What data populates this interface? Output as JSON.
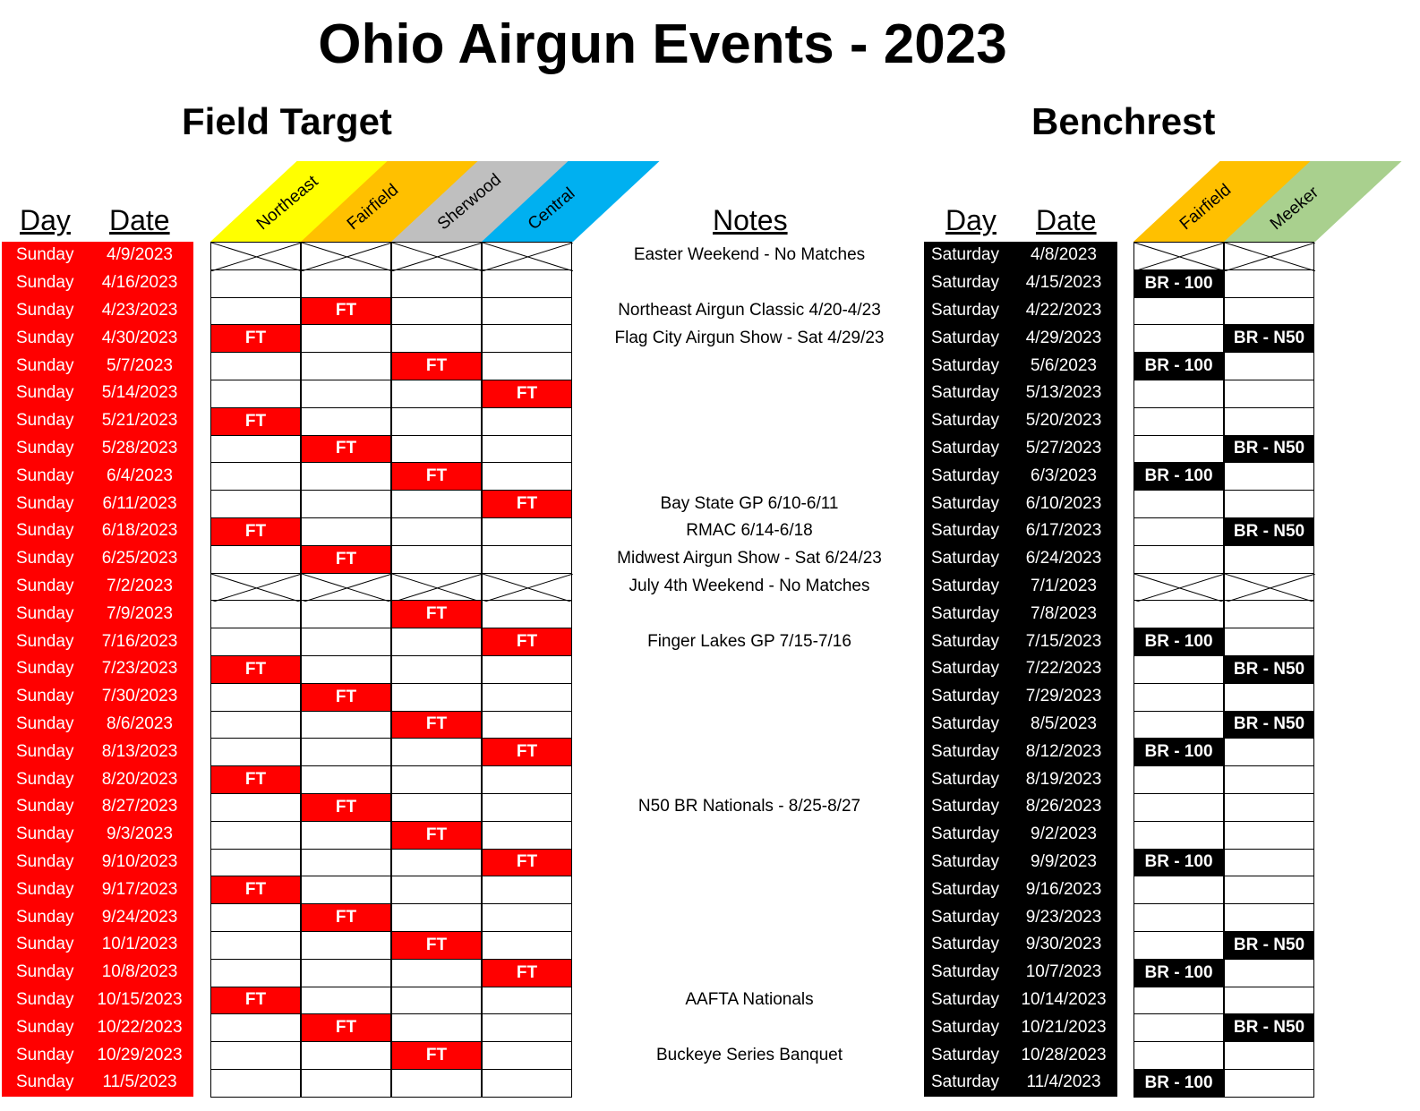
{
  "title": "Ohio Airgun Events - 2023",
  "field_target_title": "Field Target",
  "benchrest_title": "Benchrest",
  "headers": {
    "day": "Day",
    "date": "Date",
    "notes": "Notes"
  },
  "ft_venues": [
    {
      "name": "Northeast",
      "color": "#ffff00"
    },
    {
      "name": "Fairfield",
      "color": "#ffc000"
    },
    {
      "name": "Sherwood",
      "color": "#bfbfbf"
    },
    {
      "name": "Central",
      "color": "#00b0f0"
    }
  ],
  "br_venues": [
    {
      "name": "Fairfield",
      "color": "#ffc000"
    },
    {
      "name": "Meeker",
      "color": "#a9d08e"
    }
  ],
  "colors": {
    "ft_day_bg": "#ff0000",
    "br_day_bg": "#000000"
  },
  "rows": [
    {
      "day": "Sunday",
      "date": "4/9/2023",
      "ft": "X",
      "note": "Easter Weekend - No Matches",
      "bday": "Saturday",
      "bdate": "4/8/2023",
      "br": "X"
    },
    {
      "day": "Sunday",
      "date": "4/16/2023",
      "ft": "",
      "note": "",
      "bday": "Saturday",
      "bdate": "4/15/2023",
      "br": "BR - 100|"
    },
    {
      "day": "Sunday",
      "date": "4/23/2023",
      "ft": "|FT||",
      "note": "Northeast Airgun Classic 4/20-4/23",
      "bday": "Saturday",
      "bdate": "4/22/2023",
      "br": ""
    },
    {
      "day": "Sunday",
      "date": "4/30/2023",
      "ft": "FT|||",
      "note": "Flag City Airgun Show - Sat 4/29/23",
      "bday": "Saturday",
      "bdate": "4/29/2023",
      "br": "|BR - N50"
    },
    {
      "day": "Sunday",
      "date": "5/7/2023",
      "ft": "||FT|",
      "note": "",
      "bday": "Saturday",
      "bdate": "5/6/2023",
      "br": "BR - 100|"
    },
    {
      "day": "Sunday",
      "date": "5/14/2023",
      "ft": "|||FT",
      "note": "",
      "bday": "Saturday",
      "bdate": "5/13/2023",
      "br": ""
    },
    {
      "day": "Sunday",
      "date": "5/21/2023",
      "ft": "FT|||",
      "note": "",
      "bday": "Saturday",
      "bdate": "5/20/2023",
      "br": ""
    },
    {
      "day": "Sunday",
      "date": "5/28/2023",
      "ft": "|FT||",
      "note": "",
      "bday": "Saturday",
      "bdate": "5/27/2023",
      "br": "|BR - N50"
    },
    {
      "day": "Sunday",
      "date": "6/4/2023",
      "ft": "||FT|",
      "note": "",
      "bday": "Saturday",
      "bdate": "6/3/2023",
      "br": "BR - 100|"
    },
    {
      "day": "Sunday",
      "date": "6/11/2023",
      "ft": "|||FT",
      "note": "Bay State GP 6/10-6/11",
      "bday": "Saturday",
      "bdate": "6/10/2023",
      "br": ""
    },
    {
      "day": "Sunday",
      "date": "6/18/2023",
      "ft": "FT|||",
      "note": "RMAC 6/14-6/18",
      "bday": "Saturday",
      "bdate": "6/17/2023",
      "br": "|BR - N50"
    },
    {
      "day": "Sunday",
      "date": "6/25/2023",
      "ft": "|FT||",
      "note": "Midwest Airgun Show - Sat 6/24/23",
      "bday": "Saturday",
      "bdate": "6/24/2023",
      "br": ""
    },
    {
      "day": "Sunday",
      "date": "7/2/2023",
      "ft": "X",
      "note": "July 4th Weekend  - No Matches",
      "bday": "Saturday",
      "bdate": "7/1/2023",
      "br": "X"
    },
    {
      "day": "Sunday",
      "date": "7/9/2023",
      "ft": "||FT|",
      "note": "",
      "bday": "Saturday",
      "bdate": "7/8/2023",
      "br": ""
    },
    {
      "day": "Sunday",
      "date": "7/16/2023",
      "ft": "|||FT",
      "note": "Finger Lakes GP 7/15-7/16",
      "bday": "Saturday",
      "bdate": "7/15/2023",
      "br": "BR - 100|"
    },
    {
      "day": "Sunday",
      "date": "7/23/2023",
      "ft": "FT|||",
      "note": "",
      "bday": "Saturday",
      "bdate": "7/22/2023",
      "br": "|BR - N50"
    },
    {
      "day": "Sunday",
      "date": "7/30/2023",
      "ft": "|FT||",
      "note": "",
      "bday": "Saturday",
      "bdate": "7/29/2023",
      "br": ""
    },
    {
      "day": "Sunday",
      "date": "8/6/2023",
      "ft": "||FT|",
      "note": "",
      "bday": "Saturday",
      "bdate": "8/5/2023",
      "br": "|BR - N50"
    },
    {
      "day": "Sunday",
      "date": "8/13/2023",
      "ft": "|||FT",
      "note": "",
      "bday": "Saturday",
      "bdate": "8/12/2023",
      "br": "BR - 100|"
    },
    {
      "day": "Sunday",
      "date": "8/20/2023",
      "ft": "FT|||",
      "note": "",
      "bday": "Saturday",
      "bdate": "8/19/2023",
      "br": ""
    },
    {
      "day": "Sunday",
      "date": "8/27/2023",
      "ft": "|FT||",
      "note": "N50 BR Nationals - 8/25-8/27",
      "bday": "Saturday",
      "bdate": "8/26/2023",
      "br": ""
    },
    {
      "day": "Sunday",
      "date": "9/3/2023",
      "ft": "||FT|",
      "note": "",
      "bday": "Saturday",
      "bdate": "9/2/2023",
      "br": ""
    },
    {
      "day": "Sunday",
      "date": "9/10/2023",
      "ft": "|||FT",
      "note": "",
      "bday": "Saturday",
      "bdate": "9/9/2023",
      "br": "BR - 100|"
    },
    {
      "day": "Sunday",
      "date": "9/17/2023",
      "ft": "FT|||",
      "note": "",
      "bday": "Saturday",
      "bdate": "9/16/2023",
      "br": ""
    },
    {
      "day": "Sunday",
      "date": "9/24/2023",
      "ft": "|FT||",
      "note": "",
      "bday": "Saturday",
      "bdate": "9/23/2023",
      "br": ""
    },
    {
      "day": "Sunday",
      "date": "10/1/2023",
      "ft": "||FT|",
      "note": "",
      "bday": "Saturday",
      "bdate": "9/30/2023",
      "br": "|BR - N50"
    },
    {
      "day": "Sunday",
      "date": "10/8/2023",
      "ft": "|||FT",
      "note": "",
      "bday": "Saturday",
      "bdate": "10/7/2023",
      "br": "BR - 100|"
    },
    {
      "day": "Sunday",
      "date": "10/15/2023",
      "ft": "FT|||",
      "note": "AAFTA Nationals",
      "bday": "Saturday",
      "bdate": "10/14/2023",
      "br": ""
    },
    {
      "day": "Sunday",
      "date": "10/22/2023",
      "ft": "|FT||",
      "note": "",
      "bday": "Saturday",
      "bdate": "10/21/2023",
      "br": "|BR - N50"
    },
    {
      "day": "Sunday",
      "date": "10/29/2023",
      "ft": "||FT|",
      "note": "Buckeye Series Banquet",
      "bday": "Saturday",
      "bdate": "10/28/2023",
      "br": ""
    },
    {
      "day": "Sunday",
      "date": "11/5/2023",
      "ft": "",
      "note": "",
      "bday": "Saturday",
      "bdate": "11/4/2023",
      "br": "BR - 100|"
    }
  ]
}
